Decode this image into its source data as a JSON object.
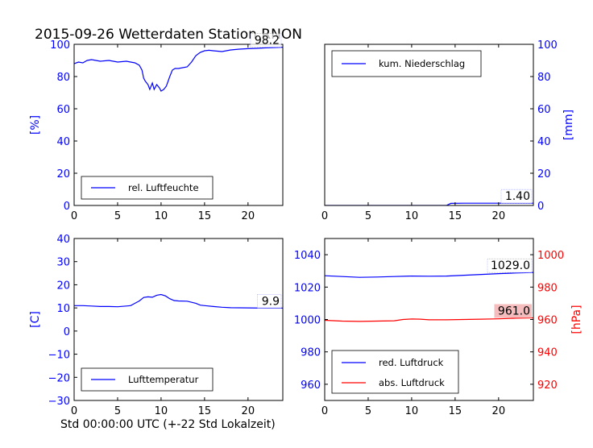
{
  "figure": {
    "title": "2015-09-26 Wetterdaten Station RNON",
    "xlabel": "Std 00:00:00 UTC (+-22 Std Lokalzeit)"
  },
  "colors": {
    "blue": "#0000ff",
    "red": "#ff0000",
    "axis": "#000000"
  },
  "chart_data": [
    {
      "type": "line",
      "panel": "top-left",
      "ylabel": "[%]",
      "xlim": [
        0,
        24
      ],
      "ylim": [
        0,
        100
      ],
      "xticks": [
        0,
        5,
        10,
        15,
        20
      ],
      "yticks": [
        0,
        20,
        40,
        60,
        80,
        100
      ],
      "legend": "bottom-left",
      "last_value_label": "98.2",
      "series": [
        {
          "name": "rel. Luftfeuchte",
          "color": "#0000ff",
          "axis": "left",
          "x": [
            0,
            0.5,
            1,
            1.5,
            2,
            3,
            4,
            5,
            6,
            7,
            7.5,
            7.8,
            8,
            8.2,
            8.5,
            8.7,
            9,
            9.2,
            9.5,
            9.8,
            10,
            10.3,
            10.6,
            11,
            11.3,
            11.6,
            12,
            13,
            13.5,
            14,
            14.5,
            15,
            15.5,
            16,
            17,
            18,
            19,
            20,
            21,
            22,
            23,
            24
          ],
          "y": [
            88,
            89,
            88.5,
            90,
            90.5,
            89.5,
            90,
            89,
            89.5,
            88.5,
            87,
            84,
            79,
            77,
            75,
            72,
            76,
            72,
            75,
            73,
            71,
            72,
            74,
            80,
            84,
            85,
            85,
            86,
            89,
            93,
            95,
            96,
            96.3,
            96,
            95.5,
            96.5,
            97,
            97.3,
            97.5,
            97.8,
            98,
            98.2
          ]
        }
      ]
    },
    {
      "type": "line",
      "panel": "top-right",
      "ylabel": "[mm]",
      "xlim": [
        0,
        24
      ],
      "ylim": [
        0,
        100
      ],
      "xticks": [
        0,
        5,
        10,
        15,
        20
      ],
      "yticks": [
        0,
        20,
        40,
        60,
        80,
        100
      ],
      "legend": "top-left",
      "last_value_label": "1.40",
      "series": [
        {
          "name": "kum. Niederschlag",
          "color": "#0000ff",
          "axis": "right",
          "x": [
            0,
            14,
            14.5,
            16,
            20,
            24
          ],
          "y": [
            0,
            0,
            1.3,
            1.4,
            1.4,
            1.4
          ]
        }
      ]
    },
    {
      "type": "line",
      "panel": "bottom-left",
      "ylabel": "[C]",
      "xlim": [
        0,
        24
      ],
      "ylim": [
        -30,
        40
      ],
      "xticks": [
        0,
        5,
        10,
        15,
        20
      ],
      "yticks": [
        -30,
        -20,
        -10,
        0,
        10,
        20,
        30,
        40
      ],
      "legend": "bottom-left",
      "last_value_label": "9.9",
      "series": [
        {
          "name": "Lufttemperatur",
          "color": "#0000ff",
          "axis": "left",
          "x": [
            0,
            1,
            2,
            3,
            4,
            5,
            6,
            6.5,
            7,
            7.5,
            8,
            8.5,
            9,
            9.5,
            10,
            10.5,
            11,
            11.5,
            12,
            13,
            14,
            14.5,
            15,
            16,
            17,
            18,
            20,
            22,
            24
          ],
          "y": [
            11,
            11,
            10.8,
            10.6,
            10.6,
            10.5,
            10.8,
            11,
            12,
            13,
            14.5,
            14.8,
            14.6,
            15.5,
            15.8,
            15.2,
            14,
            13.2,
            13,
            12.9,
            12,
            11.2,
            11,
            10.6,
            10.3,
            10.1,
            10,
            9.9,
            9.9
          ]
        }
      ]
    },
    {
      "type": "line",
      "panel": "bottom-right",
      "ylabel": "[hPa]",
      "xlim": [
        0,
        24
      ],
      "ylim": [
        950,
        1050
      ],
      "y2lim": [
        910,
        1010
      ],
      "xticks": [
        0,
        5,
        10,
        15,
        20
      ],
      "yticks": [
        960,
        980,
        1000,
        1020,
        1040
      ],
      "y2ticks": [
        920,
        940,
        960,
        980,
        1000
      ],
      "legend": "bottom-left",
      "last_value_labels": [
        "1029.0",
        "961.0"
      ],
      "series": [
        {
          "name": "red. Luftdruck",
          "color": "#0000ff",
          "axis": "left",
          "x": [
            0,
            2,
            4,
            6,
            8,
            10,
            12,
            14,
            16,
            18,
            20,
            22,
            24
          ],
          "y": [
            1027,
            1026.5,
            1026,
            1026.2,
            1026.5,
            1026.8,
            1026.7,
            1026.8,
            1027.3,
            1027.8,
            1028.3,
            1028.7,
            1029
          ]
        },
        {
          "name": "abs. Luftdruck",
          "color": "#ff0000",
          "axis": "right",
          "x": [
            0,
            2,
            4,
            6,
            8,
            9,
            10,
            11,
            12,
            14,
            16,
            18,
            20,
            22,
            24
          ],
          "y": [
            959.5,
            959,
            958.8,
            959,
            959.2,
            960,
            960.3,
            960.2,
            959.8,
            959.8,
            960,
            960.2,
            960.4,
            960.8,
            961
          ]
        }
      ]
    }
  ]
}
